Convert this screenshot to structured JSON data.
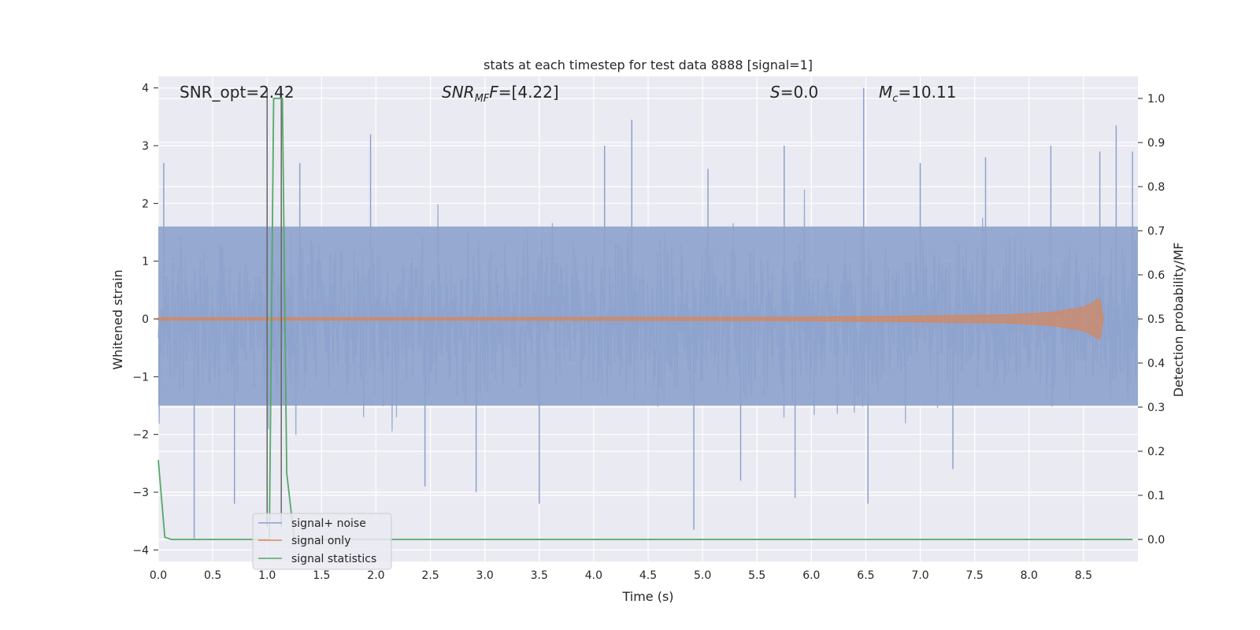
{
  "chart_data": {
    "type": "line",
    "title": "stats at each timestep for test data 8888 [signal=1]",
    "xlabel": "Time (s)",
    "ylabel": "Whitened strain",
    "y2label": "Detection probability/MF",
    "xlim": [
      0,
      9.0
    ],
    "ylim": [
      -4.2,
      4.2
    ],
    "y2lim": [
      -0.05,
      1.05
    ],
    "xticks": [
      "0.0",
      "0.5",
      "1.0",
      "1.5",
      "2.0",
      "2.5",
      "3.0",
      "3.5",
      "4.0",
      "4.5",
      "5.0",
      "5.5",
      "6.0",
      "6.5",
      "7.0",
      "7.5",
      "8.0",
      "8.5"
    ],
    "yticks": [
      "4",
      "3",
      "2",
      "1",
      "0",
      "−1",
      "−2",
      "−3",
      "−4"
    ],
    "y2ticks": [
      "1.0",
      "0.9",
      "0.8",
      "0.7",
      "0.6",
      "0.5",
      "0.4",
      "0.3",
      "0.2",
      "0.1",
      "0.0"
    ],
    "grid": true,
    "legend_position": "lower-left",
    "annotations": {
      "snr_opt": "SNR_opt=2.42",
      "snr_mf_main": "SNR",
      "snr_mf_sub": "MF",
      "snr_mf_value": "=[4.22]",
      "s_symbol": "S",
      "s_value": "=0.0",
      "mc_symbol": "M",
      "mc_sub": "c",
      "mc_value": "=10.11"
    },
    "vlines_x": [
      1.0,
      1.13
    ],
    "series": [
      {
        "name": "signal+ noise",
        "color": "#8da2cc",
        "description_peaks": {
          "x": [
            0.05,
            0.33,
            0.7,
            1.3,
            1.95,
            2.45,
            2.92,
            3.5,
            4.1,
            4.35,
            4.92,
            5.05,
            5.35,
            5.75,
            5.85,
            6.48,
            6.52,
            7.0,
            7.3,
            7.6,
            8.2,
            8.65,
            8.8,
            8.95
          ],
          "y": [
            2.7,
            -3.8,
            -3.2,
            2.7,
            3.2,
            -2.9,
            -3.0,
            -3.2,
            3.0,
            3.45,
            -3.65,
            2.6,
            -2.8,
            3.0,
            -3.1,
            4.0,
            -3.2,
            2.7,
            -2.6,
            2.8,
            3.0,
            2.9,
            3.35,
            2.9
          ]
        },
        "band": [
          -1.5,
          1.6
        ]
      },
      {
        "name": "signal only",
        "color": "#dd8452",
        "envelope": {
          "x": [
            0.0,
            2.0,
            4.0,
            6.0,
            7.0,
            7.8,
            8.2,
            8.5,
            8.65,
            8.68
          ],
          "amp": [
            0.02,
            0.02,
            0.025,
            0.03,
            0.05,
            0.07,
            0.11,
            0.2,
            0.35,
            0.0
          ]
        }
      },
      {
        "name": "signal statistics",
        "color": "#55a868",
        "x": [
          0.0,
          0.06,
          0.12,
          1.0,
          1.02,
          1.04,
          1.06,
          1.1,
          1.14,
          1.18,
          1.25,
          1.3,
          2.0,
          5.0,
          8.95
        ],
        "y": [
          0.18,
          0.005,
          0.0,
          0.0,
          0.0,
          0.5,
          1.0,
          1.0,
          1.0,
          0.15,
          0.0,
          0.0,
          0.0,
          0.0,
          0.0
        ]
      }
    ]
  }
}
